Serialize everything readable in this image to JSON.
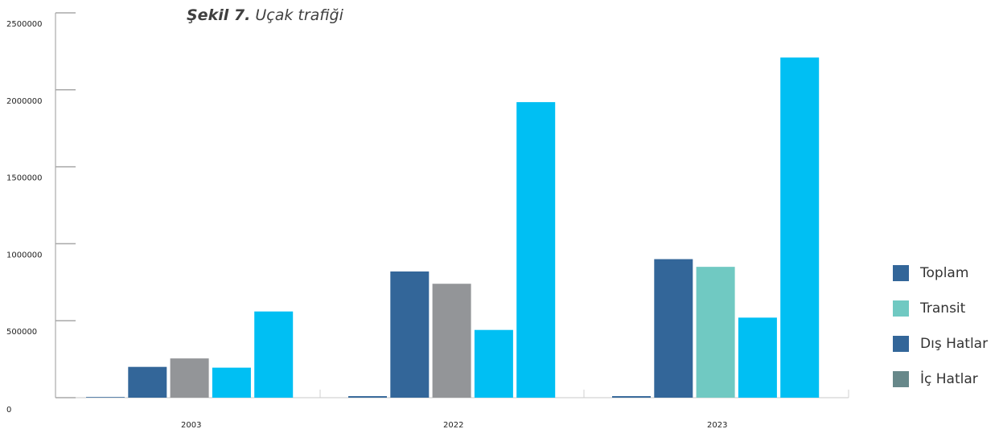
{
  "title": {
    "prefix": "Şekil 7.",
    "text": " Uçak trafiği"
  },
  "chart_data": {
    "type": "bar",
    "categories": [
      "2003",
      "2022",
      "2023"
    ],
    "ylim": [
      0,
      2500000
    ],
    "yticks": [
      "2500000",
      "2000000",
      "1500000",
      "1000000",
      "500000",
      "0"
    ],
    "bars_per_category": [
      [
        {
          "value": 0,
          "color": "#336699"
        },
        {
          "value": 200000,
          "color": "#336699"
        },
        {
          "value": 255000,
          "color": "#939598"
        },
        {
          "value": 195000,
          "color": "#00bff3"
        },
        {
          "value": 560000,
          "color": "#00bff3"
        }
      ],
      [
        {
          "value": 10000,
          "color": "#336699"
        },
        {
          "value": 820000,
          "color": "#336699"
        },
        {
          "value": 740000,
          "color": "#939598"
        },
        {
          "value": 440000,
          "color": "#00bff3"
        },
        {
          "value": 1920000,
          "color": "#00bff3"
        }
      ],
      [
        {
          "value": 10000,
          "color": "#336699"
        },
        {
          "value": 900000,
          "color": "#336699"
        },
        {
          "value": 850000,
          "color": "#70c9c2"
        },
        {
          "value": 520000,
          "color": "#00bff3"
        },
        {
          "value": 2210000,
          "color": "#00bff3"
        }
      ]
    ],
    "legend": [
      {
        "label": "Toplam",
        "color": "#336699"
      },
      {
        "label": "Transit",
        "color": "#70c9c2"
      },
      {
        "label": "Dış Hatlar",
        "color": "#336699"
      },
      {
        "label": "İç Hatlar",
        "color": "#67888a"
      }
    ],
    "legend_position": "right",
    "grid": false
  }
}
